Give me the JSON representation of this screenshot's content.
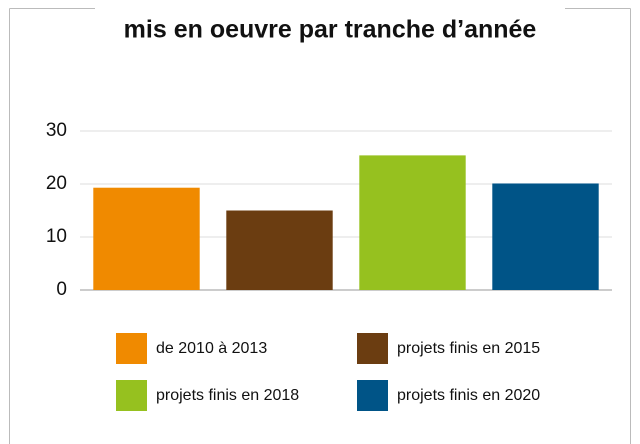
{
  "chart_data": {
    "type": "bar",
    "title": "mis en oeuvre par tranche d’année",
    "categories": [
      null
    ],
    "series": [
      {
        "name": "de 2010 à 2013",
        "color": "#f08a00",
        "values": [
          19.3
        ]
      },
      {
        "name": "projets finis en 2015",
        "color": "#6b3d11",
        "values": [
          15
        ]
      },
      {
        "name": "projets finis en 2018",
        "color": "#96c11f",
        "values": [
          25.4
        ]
      },
      {
        "name": "projets finis en 2020",
        "color": "#005487",
        "values": [
          20.1
        ]
      }
    ],
    "ylim": [
      0,
      30
    ],
    "yticks": [
      0,
      10,
      20,
      30
    ],
    "grid": true
  }
}
